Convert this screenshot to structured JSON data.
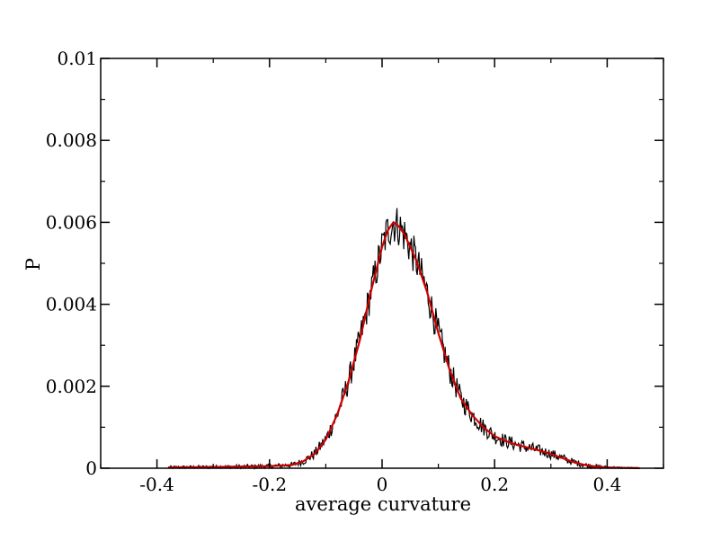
{
  "chart_data": {
    "type": "line",
    "title": "",
    "xlabel": "average curvature",
    "ylabel": "P",
    "xlim": [
      -0.5,
      0.5
    ],
    "ylim": [
      0,
      0.01
    ],
    "x_ticks": [
      -0.4,
      -0.2,
      0,
      0.2,
      0.4
    ],
    "x_tick_labels": [
      "-0.4",
      "-0.2",
      "0",
      "0.2",
      "0.4"
    ],
    "y_ticks": [
      0,
      0.002,
      0.004,
      0.006,
      0.008,
      0.01
    ],
    "y_tick_labels": [
      "0",
      "0.002",
      "0.004",
      "0.006",
      "0.008",
      "0.01"
    ],
    "grid": false,
    "legend": "none",
    "series": [
      {
        "color": "#000000",
        "style": "noisy-histogram",
        "x": [
          -0.38,
          -0.3,
          -0.2,
          -0.16,
          -0.14,
          -0.12,
          -0.1,
          -0.08,
          -0.06,
          -0.04,
          -0.02,
          0.0,
          0.01,
          0.02,
          0.03,
          0.04,
          0.06,
          0.08,
          0.1,
          0.12,
          0.14,
          0.16,
          0.18,
          0.2,
          0.22,
          0.24,
          0.26,
          0.28,
          0.3,
          0.32,
          0.34,
          0.36,
          0.38,
          0.4,
          0.42,
          0.44,
          0.46
        ],
        "values": [
          2e-05,
          3e-05,
          5e-05,
          8e-05,
          0.00017,
          0.00035,
          0.0007,
          0.0013,
          0.0021,
          0.0031,
          0.0043,
          0.0054,
          0.0058,
          0.006,
          0.0059,
          0.0057,
          0.0051,
          0.0043,
          0.0033,
          0.0024,
          0.0017,
          0.0013,
          0.001,
          0.00078,
          0.00066,
          0.00057,
          0.0005,
          0.00043,
          0.00035,
          0.00025,
          0.00015,
          8e-05,
          4e-05,
          2e-05,
          1e-05,
          5e-06,
          0.0
        ]
      },
      {
        "color": "#cc0000",
        "style": "smooth-fit",
        "x": [
          -0.38,
          -0.3,
          -0.2,
          -0.16,
          -0.14,
          -0.12,
          -0.1,
          -0.08,
          -0.06,
          -0.04,
          -0.02,
          0.0,
          0.01,
          0.02,
          0.03,
          0.04,
          0.06,
          0.08,
          0.1,
          0.12,
          0.14,
          0.16,
          0.18,
          0.2,
          0.22,
          0.24,
          0.26,
          0.28,
          0.3,
          0.32,
          0.34,
          0.36,
          0.38,
          0.4,
          0.42,
          0.44,
          0.46
        ],
        "values": [
          2e-05,
          3e-05,
          5e-05,
          8e-05,
          0.00017,
          0.00035,
          0.0007,
          0.0013,
          0.0021,
          0.0031,
          0.0043,
          0.0054,
          0.0058,
          0.006,
          0.0059,
          0.0057,
          0.0051,
          0.0043,
          0.0033,
          0.0024,
          0.0017,
          0.0013,
          0.001,
          0.00078,
          0.00066,
          0.00057,
          0.0005,
          0.00043,
          0.00035,
          0.00025,
          0.00015,
          8e-05,
          4e-05,
          2e-05,
          1e-05,
          5e-06,
          0.0
        ]
      }
    ]
  }
}
